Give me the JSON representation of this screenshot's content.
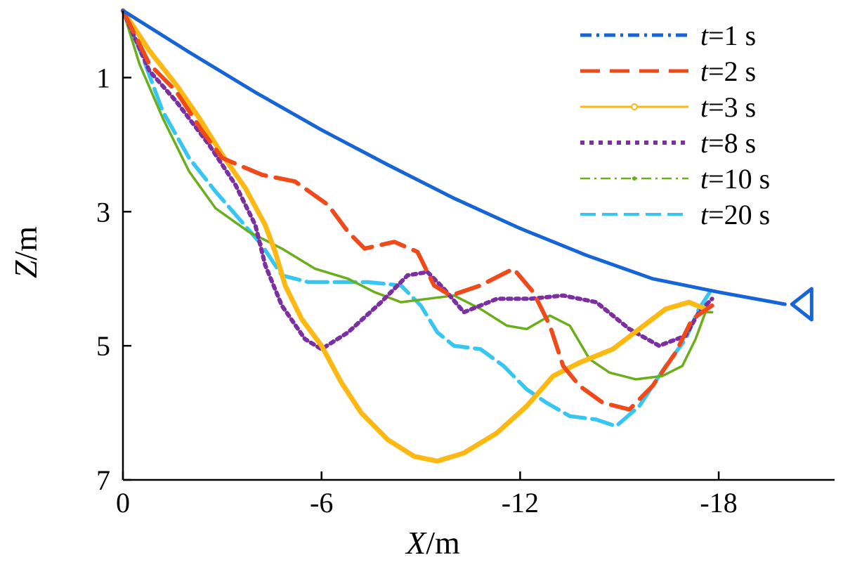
{
  "chart_data": {
    "type": "line",
    "xlabel": {
      "var": "X",
      "unit": "m"
    },
    "ylabel": {
      "var": "Z",
      "unit": "m"
    },
    "xlim": [
      0,
      -21.5
    ],
    "ylim": [
      0,
      7
    ],
    "y_inverted": true,
    "xticks": [
      0,
      -6,
      -12,
      -18
    ],
    "xtick_labels": [
      "0",
      "-6",
      "-12",
      "-18"
    ],
    "yticks": [
      1,
      3,
      5,
      7
    ],
    "ytick_labels": [
      "1",
      "3",
      "5",
      "7"
    ],
    "grid": false,
    "legend_position": "top-right",
    "series": [
      {
        "name": "1 s",
        "label_var": "t",
        "label_rest": "=1 s",
        "color": "#1565d8",
        "dash": "16,7,4,7",
        "marker": "none",
        "style": "dash-dot",
        "points": [
          [
            0,
            0
          ],
          [
            -2,
            0.62
          ],
          [
            -4,
            1.22
          ],
          [
            -6,
            1.78
          ],
          [
            -8,
            2.3
          ],
          [
            -10,
            2.8
          ],
          [
            -12,
            3.25
          ],
          [
            -14,
            3.65
          ],
          [
            -16,
            4.0
          ],
          [
            -18,
            4.2
          ],
          [
            -20,
            4.38
          ]
        ]
      },
      {
        "name": "2 s",
        "label_var": "t",
        "label_rest": "=2 s",
        "color": "#f04a1a",
        "dash": "28,14",
        "marker": "none",
        "style": "dashed",
        "points": [
          [
            0,
            0
          ],
          [
            -0.8,
            0.8
          ],
          [
            -1.6,
            1.2
          ],
          [
            -2.4,
            1.8
          ],
          [
            -3.0,
            2.2
          ],
          [
            -4.2,
            2.45
          ],
          [
            -5.2,
            2.55
          ],
          [
            -6.2,
            2.9
          ],
          [
            -6.8,
            3.3
          ],
          [
            -7.3,
            3.55
          ],
          [
            -8.2,
            3.45
          ],
          [
            -8.9,
            3.6
          ],
          [
            -9.4,
            4.1
          ],
          [
            -9.9,
            4.25
          ],
          [
            -10.8,
            4.1
          ],
          [
            -11.8,
            3.85
          ],
          [
            -12.4,
            4.2
          ],
          [
            -12.9,
            4.7
          ],
          [
            -13.3,
            5.3
          ],
          [
            -13.8,
            5.6
          ],
          [
            -14.5,
            5.85
          ],
          [
            -15.3,
            5.95
          ],
          [
            -16.0,
            5.6
          ],
          [
            -16.7,
            5.1
          ],
          [
            -17.2,
            4.6
          ],
          [
            -17.8,
            4.4
          ]
        ]
      },
      {
        "name": "3 s",
        "label_var": "t",
        "label_rest": "=3 s",
        "color": "#fdb913",
        "dash": "",
        "marker": "circle",
        "style": "solid",
        "points": [
          [
            0,
            0
          ],
          [
            -0.8,
            0.6
          ],
          [
            -1.6,
            1.1
          ],
          [
            -2.3,
            1.6
          ],
          [
            -3.0,
            2.15
          ],
          [
            -3.7,
            2.65
          ],
          [
            -4.3,
            3.2
          ],
          [
            -4.6,
            3.6
          ],
          [
            -4.9,
            4.1
          ],
          [
            -5.4,
            4.6
          ],
          [
            -6.0,
            5.0
          ],
          [
            -6.6,
            5.55
          ],
          [
            -7.2,
            6.0
          ],
          [
            -8.0,
            6.4
          ],
          [
            -8.8,
            6.65
          ],
          [
            -9.5,
            6.72
          ],
          [
            -10.3,
            6.6
          ],
          [
            -11.3,
            6.3
          ],
          [
            -12.2,
            5.9
          ],
          [
            -13.0,
            5.45
          ],
          [
            -13.8,
            5.25
          ],
          [
            -14.8,
            5.05
          ],
          [
            -15.6,
            4.75
          ],
          [
            -16.4,
            4.45
          ],
          [
            -17.1,
            4.35
          ],
          [
            -17.6,
            4.45
          ]
        ]
      },
      {
        "name": "8 s",
        "label_var": "t",
        "label_rest": "=8 s",
        "color": "#7b2fa0",
        "dash": "6,7",
        "marker": "none",
        "style": "dotted",
        "points": [
          [
            0,
            0
          ],
          [
            -0.8,
            0.9
          ],
          [
            -1.6,
            1.35
          ],
          [
            -2.6,
            2.0
          ],
          [
            -3.4,
            2.6
          ],
          [
            -4.0,
            3.2
          ],
          [
            -4.3,
            3.8
          ],
          [
            -4.8,
            4.4
          ],
          [
            -5.5,
            4.9
          ],
          [
            -6.0,
            5.05
          ],
          [
            -6.8,
            4.8
          ],
          [
            -7.8,
            4.35
          ],
          [
            -8.6,
            3.95
          ],
          [
            -9.2,
            3.9
          ],
          [
            -9.7,
            4.15
          ],
          [
            -10.3,
            4.5
          ],
          [
            -11.3,
            4.3
          ],
          [
            -12.3,
            4.3
          ],
          [
            -13.3,
            4.25
          ],
          [
            -14.3,
            4.35
          ],
          [
            -15.3,
            4.75
          ],
          [
            -16.2,
            5.0
          ],
          [
            -17.0,
            4.85
          ],
          [
            -17.4,
            4.5
          ],
          [
            -17.8,
            4.3
          ]
        ]
      },
      {
        "name": "10 s",
        "label_var": "t",
        "label_rest": "=10 s",
        "color": "#6aae1a",
        "dash": "14,6,3,6",
        "marker": "dot",
        "style": "dash-dot",
        "points": [
          [
            0,
            0
          ],
          [
            -0.5,
            0.8
          ],
          [
            -1.2,
            1.6
          ],
          [
            -2.0,
            2.4
          ],
          [
            -2.8,
            2.95
          ],
          [
            -3.8,
            3.3
          ],
          [
            -4.8,
            3.55
          ],
          [
            -5.8,
            3.85
          ],
          [
            -6.8,
            4.0
          ],
          [
            -7.6,
            4.2
          ],
          [
            -8.4,
            4.35
          ],
          [
            -9.2,
            4.3
          ],
          [
            -10.0,
            4.25
          ],
          [
            -10.8,
            4.45
          ],
          [
            -11.6,
            4.7
          ],
          [
            -12.2,
            4.75
          ],
          [
            -12.9,
            4.55
          ],
          [
            -13.5,
            4.7
          ],
          [
            -14.1,
            5.2
          ],
          [
            -14.7,
            5.4
          ],
          [
            -15.5,
            5.5
          ],
          [
            -16.3,
            5.45
          ],
          [
            -16.9,
            5.3
          ],
          [
            -17.3,
            4.9
          ],
          [
            -17.6,
            4.5
          ],
          [
            -17.8,
            4.5
          ]
        ]
      },
      {
        "name": "20 s",
        "label_var": "t",
        "label_rest": "=20 s",
        "color": "#35c6f2",
        "dash": "22,9",
        "marker": "none",
        "style": "dashed",
        "points": [
          [
            0,
            0
          ],
          [
            -0.6,
            0.7
          ],
          [
            -1.2,
            1.5
          ],
          [
            -2.0,
            2.2
          ],
          [
            -2.8,
            2.7
          ],
          [
            -3.5,
            3.1
          ],
          [
            -4.2,
            3.5
          ],
          [
            -4.8,
            3.95
          ],
          [
            -5.6,
            4.05
          ],
          [
            -6.5,
            4.05
          ],
          [
            -7.4,
            4.05
          ],
          [
            -8.4,
            4.1
          ],
          [
            -9.0,
            4.4
          ],
          [
            -9.5,
            4.8
          ],
          [
            -10.0,
            5.0
          ],
          [
            -10.8,
            5.05
          ],
          [
            -11.5,
            5.3
          ],
          [
            -12.2,
            5.65
          ],
          [
            -12.8,
            5.85
          ],
          [
            -13.5,
            6.05
          ],
          [
            -14.3,
            6.1
          ],
          [
            -14.9,
            6.2
          ],
          [
            -15.6,
            5.9
          ],
          [
            -16.4,
            5.3
          ],
          [
            -17.0,
            4.9
          ],
          [
            -17.4,
            4.45
          ],
          [
            -17.8,
            4.15
          ]
        ]
      }
    ]
  }
}
